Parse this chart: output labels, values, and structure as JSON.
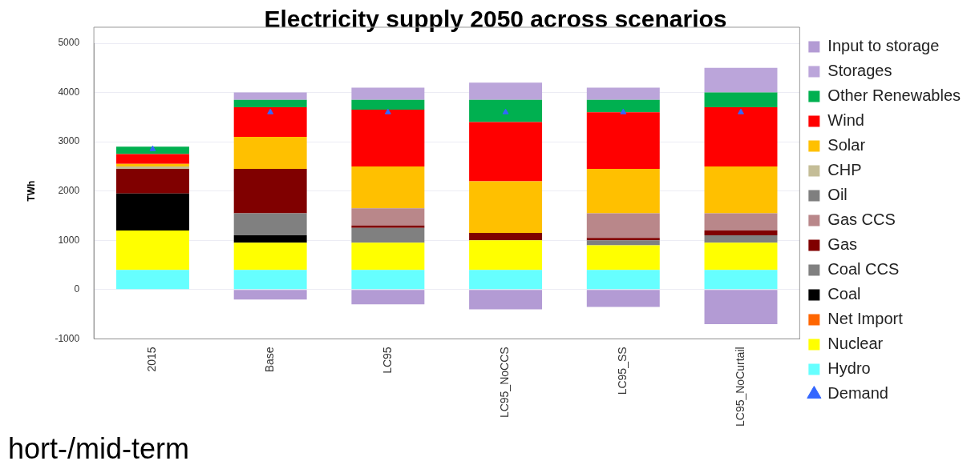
{
  "chart_data": {
    "type": "bar",
    "title": "Electricity supply 2050 across scenarios",
    "ylabel": "TWh",
    "annotations": [
      "hort-/mid-term"
    ],
    "categories": [
      "2015",
      "Base",
      "LC95",
      "LC95_NoCCS",
      "LC95_SS",
      "LC95_NoCurtail"
    ],
    "stacked": true,
    "ylim": [
      -1000,
      5000
    ],
    "yticks": [
      -1000,
      0,
      1000,
      2000,
      3000,
      4000,
      5000
    ],
    "grid": "y",
    "legend": "right",
    "series": [
      {
        "name": "Demand",
        "type": "scatter",
        "marker": "triangle",
        "color": "#3366ff",
        "values": [
          2850,
          3600,
          3600,
          3600,
          3600,
          3600
        ]
      },
      {
        "name": "Hydro",
        "color": "#66ffff",
        "values": [
          400,
          400,
          400,
          400,
          400,
          400
        ]
      },
      {
        "name": "Nuclear",
        "color": "#ffff00",
        "values": [
          800,
          550,
          550,
          600,
          500,
          550
        ]
      },
      {
        "name": "Net Import",
        "color": "#ff6600",
        "values": [
          0,
          0,
          0,
          0,
          0,
          0
        ]
      },
      {
        "name": "Coal",
        "color": "#000000",
        "values": [
          750,
          150,
          0,
          0,
          0,
          0
        ]
      },
      {
        "name": "Coal CCS",
        "color": "#808080",
        "values": [
          0,
          450,
          300,
          0,
          100,
          150
        ]
      },
      {
        "name": "Gas",
        "color": "#800000",
        "values": [
          500,
          900,
          50,
          150,
          50,
          100
        ]
      },
      {
        "name": "Gas CCS",
        "color": "#b9878a",
        "values": [
          0,
          0,
          350,
          0,
          500,
          350
        ]
      },
      {
        "name": "Oil",
        "color": "#7f7f7f",
        "values": [
          0,
          0,
          0,
          0,
          0,
          0
        ]
      },
      {
        "name": "CHP",
        "color": "#c4bd97",
        "values": [
          50,
          0,
          0,
          0,
          0,
          0
        ]
      },
      {
        "name": "Solar",
        "color": "#ffc000",
        "values": [
          50,
          650,
          850,
          1050,
          900,
          950
        ]
      },
      {
        "name": "Wind",
        "color": "#ff0000",
        "values": [
          200,
          600,
          1150,
          1200,
          1150,
          1200
        ]
      },
      {
        "name": "Other Renewables",
        "color": "#00b050",
        "values": [
          150,
          150,
          200,
          450,
          250,
          300
        ]
      },
      {
        "name": "Storages",
        "color": "#bba5da",
        "values": [
          0,
          150,
          250,
          350,
          250,
          500
        ]
      },
      {
        "name": "Input to storage",
        "color": "#b39bd4",
        "values": [
          0,
          -200,
          -300,
          -400,
          -350,
          -700
        ]
      }
    ]
  }
}
